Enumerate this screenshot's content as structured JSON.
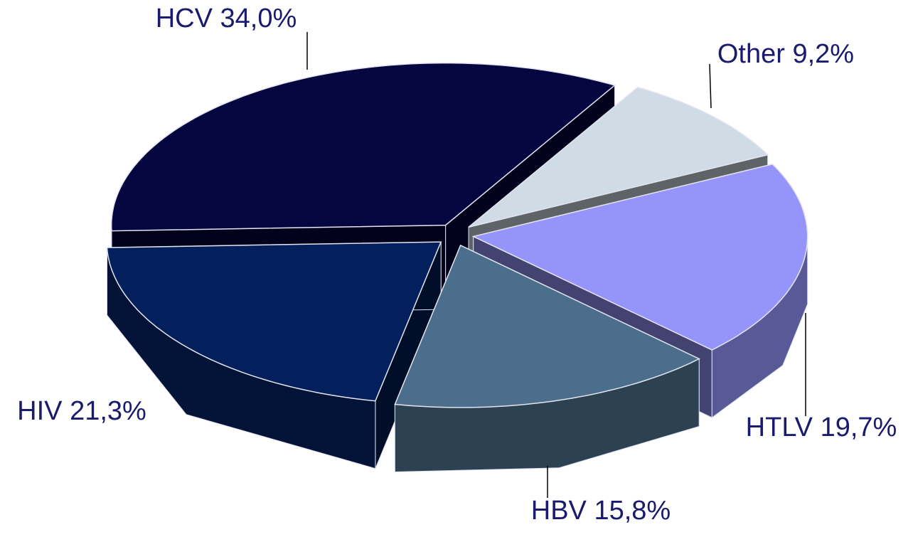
{
  "chart_data": {
    "type": "pie3d",
    "categories": [
      "HCV",
      "Other",
      "HTLV",
      "HBV",
      "HIV"
    ],
    "values": [
      34.0,
      9.2,
      19.7,
      15.8,
      21.3
    ],
    "value_labels": [
      "34,0%",
      "9,2%",
      "19,7%",
      "15,8%",
      "21,3%"
    ],
    "colors": [
      "#05053f",
      "#cfdbe5",
      "#9494fb",
      "#4a6e8b",
      "#03205c"
    ]
  }
}
